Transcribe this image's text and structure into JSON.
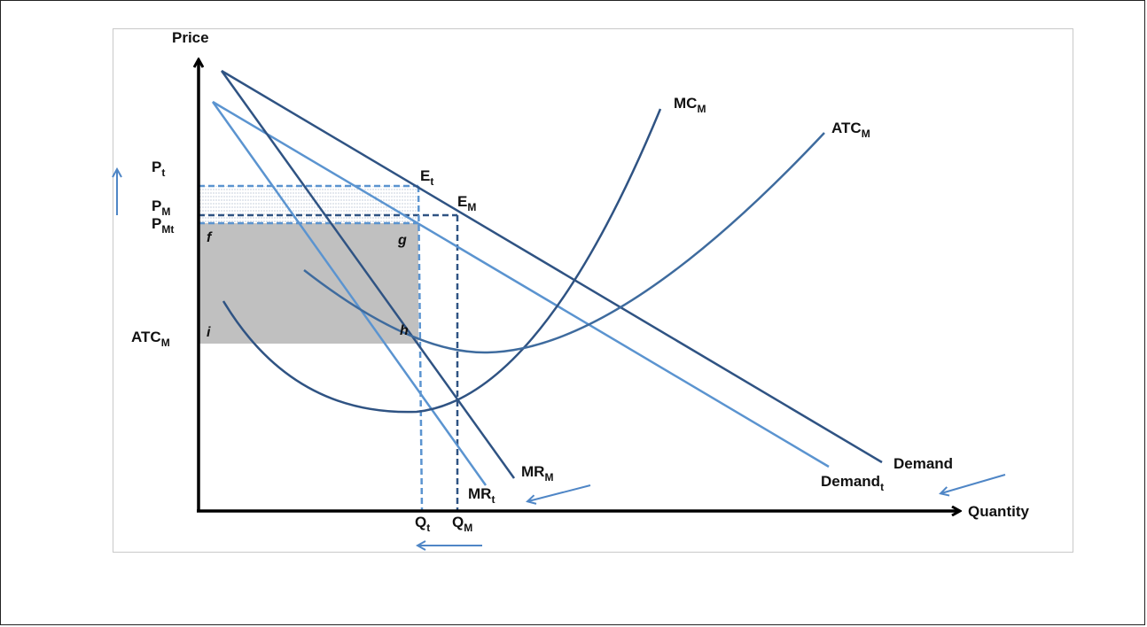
{
  "colors": {
    "dark_line": "#2f5383",
    "light_line": "#5b94d0",
    "axis": "#000000",
    "shaded_area": "#c0c0c0",
    "hatch": "#c8d1dc",
    "arrow": "#4f86c6"
  },
  "axes": {
    "y_label": "Price",
    "x_label": "Quantity"
  },
  "curves": {
    "mc": {
      "main": "MC",
      "sub": "M"
    },
    "atc": {
      "main": "ATC",
      "sub": "M"
    },
    "demand": {
      "main": "Demand",
      "sub": ""
    },
    "demand_t": {
      "main": "Demand",
      "sub": "t"
    },
    "mr_m": {
      "main": "MR",
      "sub": "M"
    },
    "mr_t": {
      "main": "MR",
      "sub": "t"
    }
  },
  "price_labels": {
    "p_t": {
      "main": "P",
      "sub": "t"
    },
    "p_m": {
      "main": "P",
      "sub": "M"
    },
    "p_mt": {
      "main": "P",
      "sub": "Mt"
    },
    "atc_m": {
      "main": "ATC",
      "sub": "M"
    }
  },
  "quantity_labels": {
    "q_t": {
      "main": "Q",
      "sub": "t"
    },
    "q_m": {
      "main": "Q",
      "sub": "M"
    }
  },
  "points": {
    "e_t": {
      "main": "E",
      "sub": "t"
    },
    "e_m": {
      "main": "E",
      "sub": "M"
    },
    "f": "f",
    "g": "g",
    "h": "h",
    "i": "i"
  },
  "shift_arrows": [
    "price-up",
    "quantity-left",
    "demand-shift-left",
    "mr-shift-left"
  ]
}
